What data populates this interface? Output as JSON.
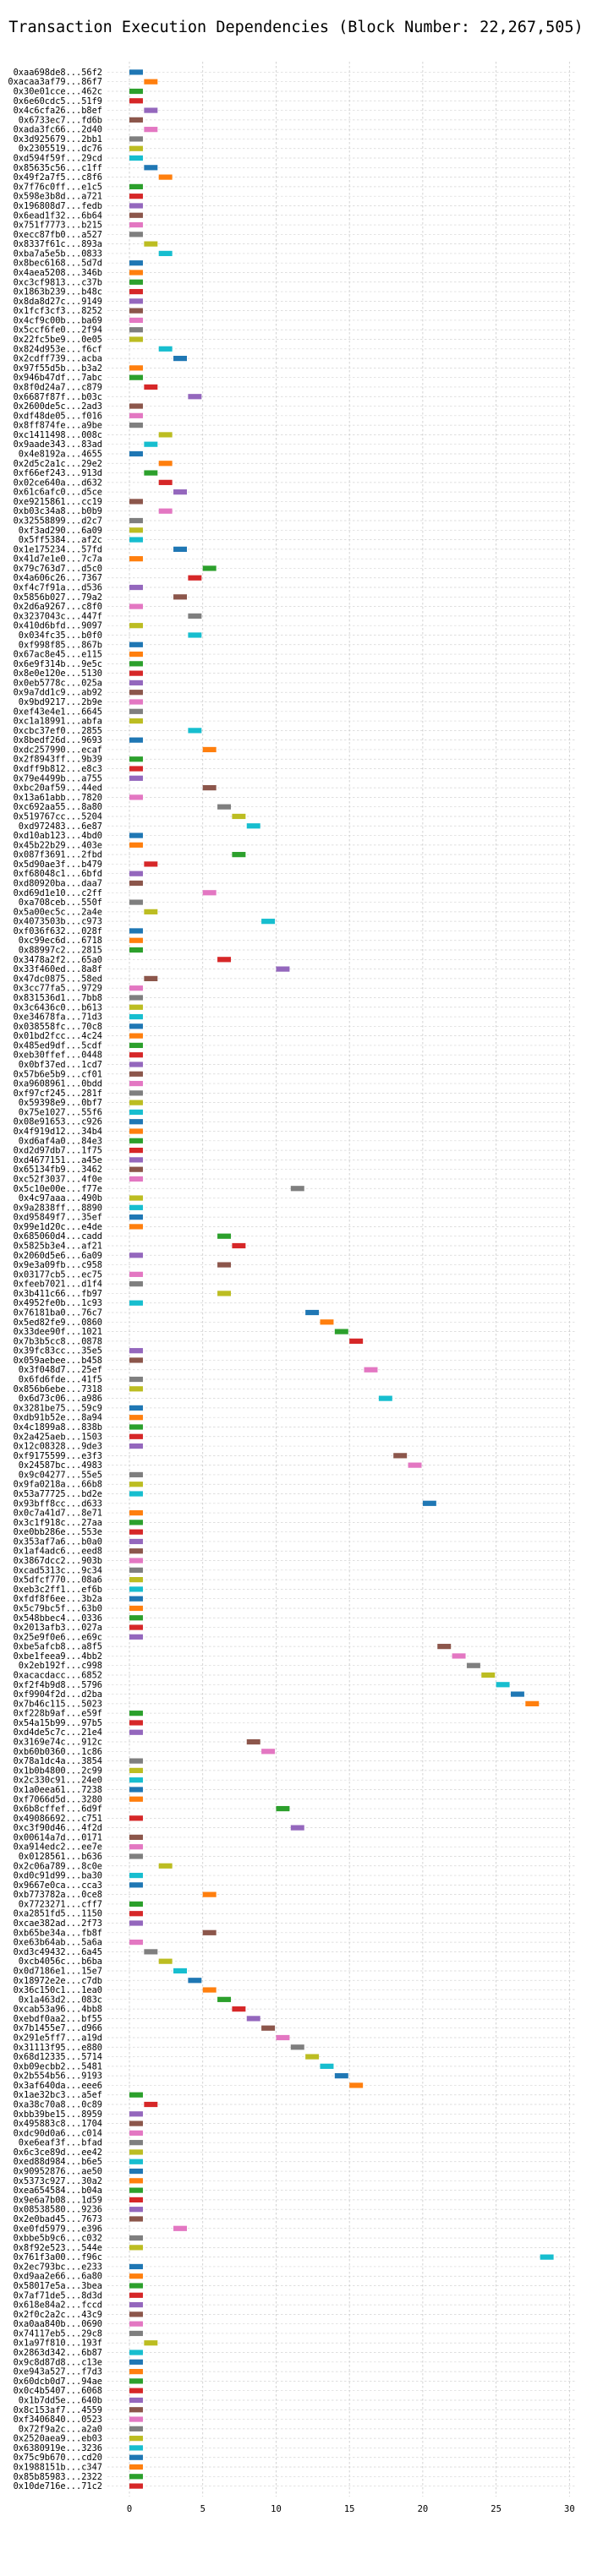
{
  "chart_data": {
    "type": "bar",
    "orientation": "horizontal",
    "title": "Transaction Execution Dependencies (Block Number: 22,267,505)",
    "xlabel": "",
    "ylabel": "",
    "xlim": [
      -1.5,
      30.5
    ],
    "xticks": [
      0,
      5,
      10,
      15,
      20,
      25,
      30
    ],
    "grid": true,
    "grid_style": "dashed",
    "bar_width": 1,
    "colors": [
      "#1f77b4",
      "#ff7f0e",
      "#2ca02c",
      "#d62728",
      "#9467bd",
      "#8c564b",
      "#e377c2",
      "#7f7f7f",
      "#bcbd22",
      "#17becf"
    ],
    "rows": [
      {
        "label": "0xaa698de8...56f2",
        "x": 0
      },
      {
        "label": "0xacaa3af79...86f7",
        "x": 1
      },
      {
        "label": "0x30e01cce...462c",
        "x": 0
      },
      {
        "label": "0x6e60cdc5...51f9",
        "x": 0
      },
      {
        "label": "0x4c6cfa26...b8ef",
        "x": 1
      },
      {
        "label": "0x6733ec7...fd6b",
        "x": 0
      },
      {
        "label": "0xada3fc66...2d40",
        "x": 1
      },
      {
        "label": "0x3d925679...2bb1",
        "x": 0
      },
      {
        "label": "0x2305519...dc76",
        "x": 0
      },
      {
        "label": "0xd594f59f...29cd",
        "x": 0
      },
      {
        "label": "0x85635c56...c1ff",
        "x": 1
      },
      {
        "label": "0x49f2a7f5...c8f6",
        "x": 2
      },
      {
        "label": "0x7f76c0ff...e1c5",
        "x": 0
      },
      {
        "label": "0x598e3b8d...a721",
        "x": 0
      },
      {
        "label": "0x196808d7...fedb",
        "x": 0
      },
      {
        "label": "0x6ead1f32...6b64",
        "x": 0
      },
      {
        "label": "0x751f7773...b215",
        "x": 0
      },
      {
        "label": "0xecc87fb0...a527",
        "x": 0
      },
      {
        "label": "0x8337f61c...893a",
        "x": 1
      },
      {
        "label": "0xba7a5e5b...0833",
        "x": 2
      },
      {
        "label": "0x8bec6168...5d7d",
        "x": 0
      },
      {
        "label": "0x4aea5208...346b",
        "x": 0
      },
      {
        "label": "0xc3cf9813...c37b",
        "x": 0
      },
      {
        "label": "0x1863b239...b48c",
        "x": 0
      },
      {
        "label": "0x8da8d27c...9149",
        "x": 0
      },
      {
        "label": "0x1fcf3cf3...8252",
        "x": 0
      },
      {
        "label": "0x4cf9c00b...ba69",
        "x": 0
      },
      {
        "label": "0x5ccf6fe0...2f94",
        "x": 0
      },
      {
        "label": "0x22fc5be9...0e05",
        "x": 0
      },
      {
        "label": "0x824d953e...f6cf",
        "x": 2
      },
      {
        "label": "0x2cdff739...acba",
        "x": 3
      },
      {
        "label": "0x97f55d5b...b3a2",
        "x": 0
      },
      {
        "label": "0x946b47df...7abc",
        "x": 0
      },
      {
        "label": "0x8f0d24a7...c879",
        "x": 1
      },
      {
        "label": "0x6687f87f...b03c",
        "x": 4
      },
      {
        "label": "0x2600de5c...2ad3",
        "x": 0
      },
      {
        "label": "0xdf48de05...f016",
        "x": 0
      },
      {
        "label": "0x8ff874fe...a9be",
        "x": 0
      },
      {
        "label": "0xc1411498...008c",
        "x": 2
      },
      {
        "label": "0x9aade343...83ad",
        "x": 1
      },
      {
        "label": "0x4e8192a...4655",
        "x": 0
      },
      {
        "label": "0x2d5c2a1c...29e2",
        "x": 2
      },
      {
        "label": "0xf66ef243...913d",
        "x": 1
      },
      {
        "label": "0x02ce640a...d632",
        "x": 2
      },
      {
        "label": "0x61c6afc0...d5ce",
        "x": 3
      },
      {
        "label": "0xe9215861...cc19",
        "x": 0
      },
      {
        "label": "0xb03c34a8...b0b9",
        "x": 2
      },
      {
        "label": "0x32558899...d2c7",
        "x": 0
      },
      {
        "label": "0xf3ad290...6a09",
        "x": 0
      },
      {
        "label": "0x5ff5384...af2c",
        "x": 0
      },
      {
        "label": "0x1e175234...57fd",
        "x": 3
      },
      {
        "label": "0x41d7e1e0...7c7a",
        "x": 0
      },
      {
        "label": "0x79c763d7...d5c0",
        "x": 5
      },
      {
        "label": "0x4a606c26...7367",
        "x": 4
      },
      {
        "label": "0xf4c7f91a...d536",
        "x": 0
      },
      {
        "label": "0x5856b027...79a2",
        "x": 3
      },
      {
        "label": "0x2d6a9267...c8f0",
        "x": 0
      },
      {
        "label": "0x3237043c...447f",
        "x": 4
      },
      {
        "label": "0x410d6bfd...9097",
        "x": 0
      },
      {
        "label": "0x034fc35...b0f0",
        "x": 4
      },
      {
        "label": "0xf998f85...867b",
        "x": 0
      },
      {
        "label": "0x67ac8e45...e115",
        "x": 0
      },
      {
        "label": "0x6e9f314b...9e5c",
        "x": 0
      },
      {
        "label": "0x8e0e120e...5130",
        "x": 0
      },
      {
        "label": "0x0eb5778c...025a",
        "x": 0
      },
      {
        "label": "0x9a7dd1c9...ab92",
        "x": 0
      },
      {
        "label": "0x9bd9217...2b9e",
        "x": 0
      },
      {
        "label": "0xef43e4e1...6645",
        "x": 0
      },
      {
        "label": "0xc1a18991...abfa",
        "x": 0
      },
      {
        "label": "0xcbc37ef0...2855",
        "x": 4
      },
      {
        "label": "0x8bedf26d...9693",
        "x": 0
      },
      {
        "label": "0xdc257990...ecaf",
        "x": 5
      },
      {
        "label": "0x2f8943ff...9b39",
        "x": 0
      },
      {
        "label": "0xdff9b812...e8c3",
        "x": 0
      },
      {
        "label": "0x79e4499b...a755",
        "x": 0
      },
      {
        "label": "0xbc20af59...44ed",
        "x": 5
      },
      {
        "label": "0x13a61abb...7820",
        "x": 0
      },
      {
        "label": "0xc692aa55...8a80",
        "x": 6
      },
      {
        "label": "0x519767cc...5204",
        "x": 7
      },
      {
        "label": "0xd972483...6e87",
        "x": 8
      },
      {
        "label": "0xd10ab123...4bd0",
        "x": 0
      },
      {
        "label": "0x45b22b29...403e",
        "x": 0
      },
      {
        "label": "0x087f3691...2fbd",
        "x": 7
      },
      {
        "label": "0x5d90ae3f...b479",
        "x": 1
      },
      {
        "label": "0xf68048c1...6bfd",
        "x": 0
      },
      {
        "label": "0xd80920ba...daa7",
        "x": 0
      },
      {
        "label": "0xd69d1e10...c2ff",
        "x": 5
      },
      {
        "label": "0xa708ceb...550f",
        "x": 0
      },
      {
        "label": "0x5a00ec5c...2a4e",
        "x": 1
      },
      {
        "label": "0x4073503b...c973",
        "x": 9
      },
      {
        "label": "0xf036f632...028f",
        "x": 0
      },
      {
        "label": "0xc99ec6d...6718",
        "x": 0
      },
      {
        "label": "0x88997c2...2815",
        "x": 0
      },
      {
        "label": "0x3478a2f2...65a0",
        "x": 6
      },
      {
        "label": "0x33f460ed...8a8f",
        "x": 10
      },
      {
        "label": "0x47dc0875...58ed",
        "x": 1
      },
      {
        "label": "0x3cc77fa5...9729",
        "x": 0
      },
      {
        "label": "0x831536d1...7bb8",
        "x": 0
      },
      {
        "label": "0x3c6436c0...b613",
        "x": 0
      },
      {
        "label": "0xe34678fa...71d3",
        "x": 0
      },
      {
        "label": "0x038558fc...70c8",
        "x": 0
      },
      {
        "label": "0x01bd2fcc...4c24",
        "x": 0
      },
      {
        "label": "0x485ed9df...5cdf",
        "x": 0
      },
      {
        "label": "0xeb30ffef...0448",
        "x": 0
      },
      {
        "label": "0x0bf37ed...1cd7",
        "x": 0
      },
      {
        "label": "0x57b6e5b9...cf01",
        "x": 0
      },
      {
        "label": "0xa9608961...0bdd",
        "x": 0
      },
      {
        "label": "0xf97cf245...281f",
        "x": 0
      },
      {
        "label": "0x59398e9...0bf7",
        "x": 0
      },
      {
        "label": "0x75e1027...55f6",
        "x": 0
      },
      {
        "label": "0x08e91653...c926",
        "x": 0
      },
      {
        "label": "0x4f919d12...34b4",
        "x": 0
      },
      {
        "label": "0xd6af4a0...84e3",
        "x": 0
      },
      {
        "label": "0xd2d97db7...1f75",
        "x": 0
      },
      {
        "label": "0xd4677151...a45e",
        "x": 0
      },
      {
        "label": "0x65134fb9...3462",
        "x": 0
      },
      {
        "label": "0xc52f3037...4f0e",
        "x": 0
      },
      {
        "label": "0x5c10e00e...f77e",
        "x": 11
      },
      {
        "label": "0x4c97aaa...490b",
        "x": 0
      },
      {
        "label": "0x9a2838ff...8890",
        "x": 0
      },
      {
        "label": "0xd95849f7...35ef",
        "x": 0
      },
      {
        "label": "0x99e1d20c...e4de",
        "x": 0
      },
      {
        "label": "0x685060d4...cadd",
        "x": 6
      },
      {
        "label": "0x5825b3e4...af21",
        "x": 7
      },
      {
        "label": "0x2060d5e6...6a09",
        "x": 0
      },
      {
        "label": "0x9e3a09fb...c958",
        "x": 6
      },
      {
        "label": "0x03177cb5...ec75",
        "x": 0
      },
      {
        "label": "0xfeeb7021...d1f4",
        "x": 0
      },
      {
        "label": "0x3b411c66...fb97",
        "x": 6
      },
      {
        "label": "0x4952fe0b...1c93",
        "x": 0
      },
      {
        "label": "0x76181ba0...76c7",
        "x": 12
      },
      {
        "label": "0x5ed82fe9...0860",
        "x": 13
      },
      {
        "label": "0x33dee90f...1021",
        "x": 14
      },
      {
        "label": "0x7b3b5cc8...0878",
        "x": 15
      },
      {
        "label": "0x39fc83cc...35e5",
        "x": 0
      },
      {
        "label": "0x059aebee...b458",
        "x": 0
      },
      {
        "label": "0x3f048d7...25ef",
        "x": 16
      },
      {
        "label": "0x6fd6fde...41f5",
        "x": 0
      },
      {
        "label": "0x856b6ebe...7318",
        "x": 0
      },
      {
        "label": "0x6d73c06...a986",
        "x": 17
      },
      {
        "label": "0x3281be75...59c9",
        "x": 0
      },
      {
        "label": "0xdb91b52e...8a94",
        "x": 0
      },
      {
        "label": "0x4c1899a8...838b",
        "x": 0
      },
      {
        "label": "0x2a425aeb...1503",
        "x": 0
      },
      {
        "label": "0x12c08328...9de3",
        "x": 0
      },
      {
        "label": "0xf9175599...e3f3",
        "x": 18
      },
      {
        "label": "0x24587bc...4983",
        "x": 19
      },
      {
        "label": "0x9c04277...55e5",
        "x": 0
      },
      {
        "label": "0x9fa0218a...66b8",
        "x": 0
      },
      {
        "label": "0x53a77725...bd2e",
        "x": 0
      },
      {
        "label": "0x93bff8cc...d633",
        "x": 20
      },
      {
        "label": "0x0c7a41d7...8e71",
        "x": 0
      },
      {
        "label": "0x3c1f918c...27aa",
        "x": 0
      },
      {
        "label": "0xe0bb286e...553e",
        "x": 0
      },
      {
        "label": "0x353af7a6...b0a0",
        "x": 0
      },
      {
        "label": "0x1af4adc6...eed8",
        "x": 0
      },
      {
        "label": "0x3867dcc2...903b",
        "x": 0
      },
      {
        "label": "0xcad5313c...9c34",
        "x": 0
      },
      {
        "label": "0x5dfcf770...08a6",
        "x": 0
      },
      {
        "label": "0xeb3c2ff1...ef6b",
        "x": 0
      },
      {
        "label": "0xfdf8f6ee...3b2a",
        "x": 0
      },
      {
        "label": "0x5c79bc5f...63b0",
        "x": 0
      },
      {
        "label": "0x548bbec4...0336",
        "x": 0
      },
      {
        "label": "0x2013afb3...027a",
        "x": 0
      },
      {
        "label": "0x25e9f0e6...e69c",
        "x": 0
      },
      {
        "label": "0xbe5afcb8...a8f5",
        "x": 21
      },
      {
        "label": "0xbe1feea9...4bb2",
        "x": 22
      },
      {
        "label": "0x2eb192f...c998",
        "x": 23
      },
      {
        "label": "0xacacdacc...6852",
        "x": 24
      },
      {
        "label": "0xf2f4b9d8...5796",
        "x": 25
      },
      {
        "label": "0xf9904f2d...d2ba",
        "x": 26
      },
      {
        "label": "0x7b46c115...5023",
        "x": 27
      },
      {
        "label": "0xf228b9af...e59f",
        "x": 0
      },
      {
        "label": "0x54a15b99...97b5",
        "x": 0
      },
      {
        "label": "0xd4de5c7c...21e4",
        "x": 0
      },
      {
        "label": "0x3169e74c...912c",
        "x": 8
      },
      {
        "label": "0xb60b0360...1c86",
        "x": 9
      },
      {
        "label": "0x78a1dc4a...3854",
        "x": 0
      },
      {
        "label": "0x1b0b4800...2c99",
        "x": 0
      },
      {
        "label": "0x2c330c91...24e0",
        "x": 0
      },
      {
        "label": "0x1a0eea61...7238",
        "x": 0
      },
      {
        "label": "0xf7066d5d...3280",
        "x": 0
      },
      {
        "label": "0x6b8cffef...6d9f",
        "x": 10
      },
      {
        "label": "0x49086692...c751",
        "x": 0
      },
      {
        "label": "0xc3f90d46...4f2d",
        "x": 11
      },
      {
        "label": "0x00614a7d...0171",
        "x": 0
      },
      {
        "label": "0xa914edc2...ee7e",
        "x": 0
      },
      {
        "label": "0x0128561...b636",
        "x": 0
      },
      {
        "label": "0x2c06a789...8c0e",
        "x": 2
      },
      {
        "label": "0xd0c91d99...ba30",
        "x": 0
      },
      {
        "label": "0x9667e0ca...cca3",
        "x": 0
      },
      {
        "label": "0xb773782a...0ce8",
        "x": 5
      },
      {
        "label": "0x7723271...cff7",
        "x": 0
      },
      {
        "label": "0xa2851fd5...1150",
        "x": 0
      },
      {
        "label": "0xcae382ad...2f73",
        "x": 0
      },
      {
        "label": "0xb65be34a...fb8f",
        "x": 5
      },
      {
        "label": "0xe63b64ab...5a6a",
        "x": 0
      },
      {
        "label": "0xd3c49432...6a45",
        "x": 1
      },
      {
        "label": "0xcb4056c...b6ba",
        "x": 2
      },
      {
        "label": "0x0d7186e1...15e7",
        "x": 3
      },
      {
        "label": "0x18972e2e...c7db",
        "x": 4
      },
      {
        "label": "0x36c150c1...1ea0",
        "x": 5
      },
      {
        "label": "0x1a463d2...083c",
        "x": 6
      },
      {
        "label": "0xcab53a96...4bb8",
        "x": 7
      },
      {
        "label": "0xebdf0aa2...bf55",
        "x": 8
      },
      {
        "label": "0x7b1455e7...d966",
        "x": 9
      },
      {
        "label": "0x291e5ff7...a19d",
        "x": 10
      },
      {
        "label": "0x31113f95...e880",
        "x": 11
      },
      {
        "label": "0x68d12335...5714",
        "x": 12
      },
      {
        "label": "0xb09ecbb2...5481",
        "x": 13
      },
      {
        "label": "0x2b554b56...9193",
        "x": 14
      },
      {
        "label": "0x3af640da...eee6",
        "x": 15
      },
      {
        "label": "0x1ae32bc3...a5ef",
        "x": 0
      },
      {
        "label": "0xa38c70a8...0c89",
        "x": 1
      },
      {
        "label": "0xbb39be15...8959",
        "x": 0
      },
      {
        "label": "0x495883c8...1704",
        "x": 0
      },
      {
        "label": "0xdc90d0a6...c014",
        "x": 0
      },
      {
        "label": "0xe6eaf3f...bfad",
        "x": 0
      },
      {
        "label": "0x6c3ce89d...ee42",
        "x": 0
      },
      {
        "label": "0xed88d984...b6e5",
        "x": 0
      },
      {
        "label": "0x90952876...ae50",
        "x": 0
      },
      {
        "label": "0x5373c927...30a2",
        "x": 0
      },
      {
        "label": "0xea654584...b04a",
        "x": 0
      },
      {
        "label": "0x9e6a7b08...1d59",
        "x": 0
      },
      {
        "label": "0x08538580...9236",
        "x": 0
      },
      {
        "label": "0x2e0bad45...7673",
        "x": 0
      },
      {
        "label": "0xe0fd5979...e396",
        "x": 3
      },
      {
        "label": "0xbbe5b9c6...c032",
        "x": 0
      },
      {
        "label": "0x8f92e523...544e",
        "x": 0
      },
      {
        "label": "0x761f3a00...f96c",
        "x": 28
      },
      {
        "label": "0x2ec793bc...e233",
        "x": 0
      },
      {
        "label": "0xd9aa2e66...6a80",
        "x": 0
      },
      {
        "label": "0x58017e5a...3bea",
        "x": 0
      },
      {
        "label": "0x7af71de5...8d3d",
        "x": 0
      },
      {
        "label": "0x618e84a2...fccd",
        "x": 0
      },
      {
        "label": "0x2f0c2a2c...43c9",
        "x": 0
      },
      {
        "label": "0xa0aa840b...0690",
        "x": 0
      },
      {
        "label": "0x74117eb5...29c8",
        "x": 0
      },
      {
        "label": "0x1a97f810...193f",
        "x": 1
      },
      {
        "label": "0x2863d342...6b87",
        "x": 0
      },
      {
        "label": "0x9c8d87d8...c13e",
        "x": 0
      },
      {
        "label": "0xe943a527...f7d3",
        "x": 0
      },
      {
        "label": "0x60dcb0d7...94ae",
        "x": 0
      },
      {
        "label": "0x0c4b5407...6068",
        "x": 0
      },
      {
        "label": "0x1b7dd5e...640b",
        "x": 0
      },
      {
        "label": "0x8c153af7...4559",
        "x": 0
      },
      {
        "label": "0xf3406840...0523",
        "x": 0
      },
      {
        "label": "0x72f9a2c...a2a0",
        "x": 0
      },
      {
        "label": "0x2520aea9...eb03",
        "x": 0
      },
      {
        "label": "0x6380919e...3236",
        "x": 0
      },
      {
        "label": "0x75c9b670...cd20",
        "x": 0
      },
      {
        "label": "0x1988151b...c347",
        "x": 0
      },
      {
        "label": "0x85b85983...2322",
        "x": 0
      },
      {
        "label": "0x10de716e...71c2",
        "x": 0
      }
    ]
  }
}
